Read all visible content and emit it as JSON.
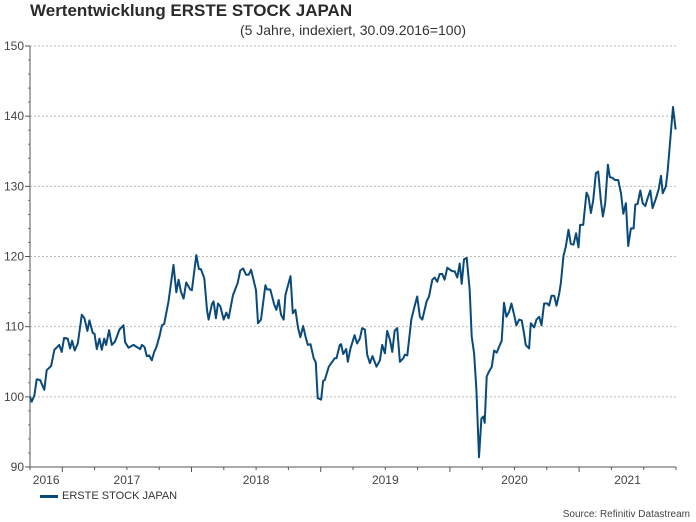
{
  "chart_data": {
    "type": "line",
    "title": "Wertentwicklung ERSTE STOCK JAPAN",
    "subtitle": "(5 Jahre, indexiert, 30.09.2016=100)",
    "xlabel": "",
    "ylabel": "",
    "xlim": [
      2016.75,
      2021.75
    ],
    "ylim": [
      90,
      150
    ],
    "yticks": [
      90,
      100,
      110,
      120,
      130,
      140,
      150
    ],
    "ytick_labels": [
      "90",
      "100",
      "110",
      "120",
      "130",
      "140",
      "150"
    ],
    "xtick_labels": [
      {
        "label": "2016",
        "at": 2016.875
      },
      {
        "label": "2017",
        "at": 2017.5
      },
      {
        "label": "2018",
        "at": 2018.5
      },
      {
        "label": "2019",
        "at": 2019.5
      },
      {
        "label": "2020",
        "at": 2020.5
      },
      {
        "label": "2021",
        "at": 2021.375
      }
    ],
    "grid": true,
    "legend_position": "bottom-left",
    "source": "Source: Refinitiv Datastream",
    "series": [
      {
        "name": "ERSTE STOCK JAPAN",
        "color": "#0a4a7a",
        "points": [
          [
            2016.75,
            100
          ],
          [
            2016.763,
            99.3
          ],
          [
            2016.784,
            100.2
          ],
          [
            2016.802,
            102.5
          ],
          [
            2016.828,
            102.4
          ],
          [
            2016.861,
            101
          ],
          [
            2016.879,
            103.8
          ],
          [
            2016.913,
            104.4
          ],
          [
            2016.939,
            106.7
          ],
          [
            2016.977,
            107.4
          ],
          [
            2016.995,
            106.4
          ],
          [
            2017.014,
            108.4
          ],
          [
            2017.042,
            108.3
          ],
          [
            2017.06,
            106.9
          ],
          [
            2017.076,
            108
          ],
          [
            2017.096,
            106.6
          ],
          [
            2017.12,
            107.6
          ],
          [
            2017.151,
            111.7
          ],
          [
            2017.171,
            111.2
          ],
          [
            2017.194,
            109.4
          ],
          [
            2017.21,
            110.9
          ],
          [
            2017.236,
            109.1
          ],
          [
            2017.249,
            109
          ],
          [
            2017.267,
            106.8
          ],
          [
            2017.287,
            108.3
          ],
          [
            2017.306,
            106.7
          ],
          [
            2017.324,
            108.3
          ],
          [
            2017.339,
            107.4
          ],
          [
            2017.362,
            109.5
          ],
          [
            2017.383,
            107.4
          ],
          [
            2017.409,
            107.9
          ],
          [
            2017.443,
            109.6
          ],
          [
            2017.474,
            110.2
          ],
          [
            2017.486,
            107.8
          ],
          [
            2017.512,
            107
          ],
          [
            2017.551,
            107.4
          ],
          [
            2017.577,
            107.1
          ],
          [
            2017.603,
            106.8
          ],
          [
            2017.616,
            107.4
          ],
          [
            2017.636,
            107.1
          ],
          [
            2017.654,
            105.8
          ],
          [
            2017.672,
            105.9
          ],
          [
            2017.693,
            105.2
          ],
          [
            2017.711,
            106.4
          ],
          [
            2017.727,
            107
          ],
          [
            2017.753,
            108.7
          ],
          [
            2017.771,
            110.2
          ],
          [
            2017.789,
            110.4
          ],
          [
            2017.822,
            113.6
          ],
          [
            2017.861,
            118.8
          ],
          [
            2017.882,
            114.9
          ],
          [
            2017.9,
            116.7
          ],
          [
            2017.918,
            115
          ],
          [
            2017.939,
            114
          ],
          [
            2017.959,
            116.3
          ],
          [
            2017.99,
            115.3
          ],
          [
            2018.003,
            115.2
          ],
          [
            2018.037,
            120.2
          ],
          [
            2018.057,
            118.2
          ],
          [
            2018.073,
            118.2
          ],
          [
            2018.099,
            116.9
          ],
          [
            2018.12,
            112.4
          ],
          [
            2018.132,
            111
          ],
          [
            2018.158,
            113.2
          ],
          [
            2018.171,
            113.6
          ],
          [
            2018.189,
            111.2
          ],
          [
            2018.205,
            113.3
          ],
          [
            2018.223,
            112.9
          ],
          [
            2018.249,
            111
          ],
          [
            2018.269,
            112
          ],
          [
            2018.287,
            111.2
          ],
          [
            2018.321,
            114.5
          ],
          [
            2018.357,
            116.2
          ],
          [
            2018.378,
            118
          ],
          [
            2018.399,
            118.3
          ],
          [
            2018.422,
            117.4
          ],
          [
            2018.443,
            117.4
          ],
          [
            2018.461,
            118.1
          ],
          [
            2018.499,
            115.2
          ],
          [
            2018.515,
            110.5
          ],
          [
            2018.538,
            111
          ],
          [
            2018.572,
            115.9
          ],
          [
            2018.585,
            115.3
          ],
          [
            2018.61,
            115.3
          ],
          [
            2018.641,
            113.1
          ],
          [
            2018.657,
            112.4
          ],
          [
            2018.675,
            113.8
          ],
          [
            2018.693,
            111.7
          ],
          [
            2018.714,
            111
          ],
          [
            2018.727,
            114.5
          ],
          [
            2018.766,
            117.2
          ],
          [
            2018.784,
            111.9
          ],
          [
            2018.804,
            112.4
          ],
          [
            2018.825,
            109.8
          ],
          [
            2018.843,
            108.5
          ],
          [
            2018.864,
            110.1
          ],
          [
            2018.882,
            108.6
          ],
          [
            2018.9,
            107.4
          ],
          [
            2018.921,
            107.5
          ],
          [
            2018.946,
            105.5
          ],
          [
            2018.962,
            104.9
          ],
          [
            2018.977,
            99.8
          ],
          [
            2019.003,
            99.6
          ],
          [
            2019.019,
            102.3
          ],
          [
            2019.032,
            102.4
          ],
          [
            2019.063,
            104.3
          ],
          [
            2019.089,
            105
          ],
          [
            2019.109,
            105.5
          ],
          [
            2019.122,
            105.5
          ],
          [
            2019.148,
            107.4
          ],
          [
            2019.158,
            107.5
          ],
          [
            2019.174,
            106.1
          ],
          [
            2019.197,
            106.8
          ],
          [
            2019.21,
            105
          ],
          [
            2019.231,
            106.9
          ],
          [
            2019.262,
            108.8
          ],
          [
            2019.282,
            107.6
          ],
          [
            2019.303,
            108.3
          ],
          [
            2019.321,
            109.8
          ],
          [
            2019.342,
            109.6
          ],
          [
            2019.36,
            106
          ],
          [
            2019.381,
            104.8
          ],
          [
            2019.401,
            105.8
          ],
          [
            2019.432,
            104.3
          ],
          [
            2019.458,
            105.2
          ],
          [
            2019.476,
            107.4
          ],
          [
            2019.497,
            106.2
          ],
          [
            2019.515,
            109.4
          ],
          [
            2019.536,
            108.1
          ],
          [
            2019.554,
            106.4
          ],
          [
            2019.572,
            109.4
          ],
          [
            2019.592,
            109.8
          ],
          [
            2019.613,
            105
          ],
          [
            2019.639,
            105.5
          ],
          [
            2019.652,
            106
          ],
          [
            2019.67,
            105.9
          ],
          [
            2019.701,
            111
          ],
          [
            2019.727,
            112.9
          ],
          [
            2019.747,
            114.3
          ],
          [
            2019.768,
            111.4
          ],
          [
            2019.786,
            111
          ],
          [
            2019.82,
            113.6
          ],
          [
            2019.838,
            114.3
          ],
          [
            2019.864,
            116.7
          ],
          [
            2019.882,
            117
          ],
          [
            2019.902,
            116.4
          ],
          [
            2019.921,
            117.5
          ],
          [
            2019.941,
            117.5
          ],
          [
            2019.959,
            116.7
          ],
          [
            2019.98,
            118.4
          ],
          [
            2020.001,
            118.1
          ],
          [
            2020.019,
            117.9
          ],
          [
            2020.037,
            117.9
          ],
          [
            2020.057,
            117
          ],
          [
            2020.076,
            119
          ],
          [
            2020.091,
            116.1
          ],
          [
            2020.109,
            119.6
          ],
          [
            2020.13,
            119.8
          ],
          [
            2020.153,
            115.2
          ],
          [
            2020.169,
            108.6
          ],
          [
            2020.187,
            106.2
          ],
          [
            2020.205,
            101
          ],
          [
            2020.225,
            91.4
          ],
          [
            2020.244,
            96.9
          ],
          [
            2020.259,
            97.2
          ],
          [
            2020.269,
            96.3
          ],
          [
            2020.285,
            102.9
          ],
          [
            2020.303,
            103.6
          ],
          [
            2020.324,
            104.3
          ],
          [
            2020.342,
            106.6
          ],
          [
            2020.362,
            106.3
          ],
          [
            2020.38,
            107.1
          ],
          [
            2020.401,
            108
          ],
          [
            2020.419,
            113.4
          ],
          [
            2020.437,
            111.4
          ],
          [
            2020.458,
            112.1
          ],
          [
            2020.476,
            113.3
          ],
          [
            2020.497,
            111.7
          ],
          [
            2020.515,
            110.2
          ],
          [
            2020.536,
            111
          ],
          [
            2020.556,
            110.9
          ],
          [
            2020.574,
            109
          ],
          [
            2020.587,
            107.4
          ],
          [
            2020.613,
            106.9
          ],
          [
            2020.626,
            110.5
          ],
          [
            2020.652,
            109.9
          ],
          [
            2020.67,
            111
          ],
          [
            2020.691,
            111.4
          ],
          [
            2020.709,
            110.2
          ],
          [
            2020.729,
            113.3
          ],
          [
            2020.755,
            113.3
          ],
          [
            2020.768,
            113
          ],
          [
            2020.786,
            114.4
          ],
          [
            2020.807,
            114.4
          ],
          [
            2020.825,
            113
          ],
          [
            2020.846,
            114.7
          ],
          [
            2020.859,
            116.3
          ],
          [
            2020.879,
            120.1
          ],
          [
            2020.897,
            121.4
          ],
          [
            2020.918,
            123.8
          ],
          [
            2020.936,
            121.8
          ],
          [
            2020.957,
            121.7
          ],
          [
            2020.977,
            123.3
          ],
          [
            2020.995,
            121.3
          ],
          [
            2021.008,
            124.5
          ],
          [
            2021.032,
            124.5
          ],
          [
            2021.057,
            129.1
          ],
          [
            2021.073,
            128.5
          ],
          [
            2021.091,
            126.2
          ],
          [
            2021.109,
            128
          ],
          [
            2021.13,
            131.9
          ],
          [
            2021.148,
            132.1
          ],
          [
            2021.169,
            127.9
          ],
          [
            2021.184,
            125.7
          ],
          [
            2021.202,
            127.6
          ],
          [
            2021.223,
            133.1
          ],
          [
            2021.238,
            131.3
          ],
          [
            2021.259,
            131.2
          ],
          [
            2021.277,
            130.9
          ],
          [
            2021.303,
            130.9
          ],
          [
            2021.324,
            129
          ],
          [
            2021.342,
            126.1
          ],
          [
            2021.362,
            127.6
          ],
          [
            2021.38,
            121.5
          ],
          [
            2021.401,
            124
          ],
          [
            2021.422,
            124
          ],
          [
            2021.435,
            127.4
          ],
          [
            2021.453,
            127.5
          ],
          [
            2021.474,
            129.4
          ],
          [
            2021.492,
            127.6
          ],
          [
            2021.512,
            127.2
          ],
          [
            2021.53,
            128.3
          ],
          [
            2021.551,
            129.4
          ],
          [
            2021.569,
            126.9
          ],
          [
            2021.595,
            128.3
          ],
          [
            2021.616,
            129.6
          ],
          [
            2021.634,
            131.5
          ],
          [
            2021.647,
            129
          ],
          [
            2021.672,
            130
          ],
          [
            2021.685,
            132.1
          ],
          [
            2021.706,
            136.7
          ],
          [
            2021.727,
            141.3
          ],
          [
            2021.747,
            138.1
          ]
        ]
      }
    ]
  }
}
